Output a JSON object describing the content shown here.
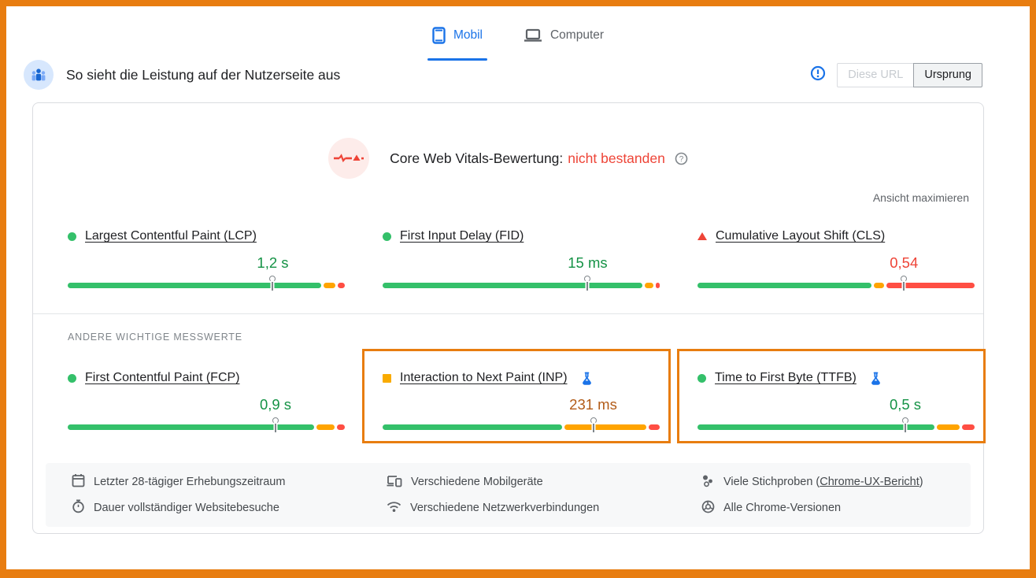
{
  "tabs": {
    "mobile": "Mobil",
    "desktop": "Computer"
  },
  "header": {
    "title": "So sieht die Leistung auf der Nutzerseite aus",
    "url_toggle": {
      "this_url": "Diese URL",
      "origin": "Ursprung"
    }
  },
  "cwv": {
    "heading": "Core Web Vitals-Bewertung:",
    "verdict": "nicht bestanden",
    "expand_label": "Ansicht maximieren"
  },
  "other_metrics_label": "ANDERE WICHTIGE MESSWERTE",
  "metrics": [
    {
      "id": "lcp",
      "label": "Largest Contentful Paint (LCP)",
      "value": "1,2 s",
      "status": "good",
      "bar": {
        "green": 93,
        "orange": 4.5,
        "red": 2.5
      },
      "marker_pct": 74,
      "experimental": false,
      "highlighted": false
    },
    {
      "id": "fid",
      "label": "First Input Delay (FID)",
      "value": "15 ms",
      "status": "good",
      "bar": {
        "green": 95.5,
        "orange": 3,
        "red": 1.5
      },
      "marker_pct": 74,
      "experimental": false,
      "highlighted": false
    },
    {
      "id": "cls",
      "label": "Cumulative Layout Shift (CLS)",
      "value": "0,54",
      "status": "poor",
      "bar": {
        "green": 64,
        "orange": 3.5,
        "red": 32.5
      },
      "marker_pct": 74.5,
      "experimental": false,
      "highlighted": false
    },
    {
      "id": "fcp",
      "label": "First Contentful Paint (FCP)",
      "value": "0,9 s",
      "status": "good",
      "bar": {
        "green": 90.5,
        "orange": 6.5,
        "red": 3
      },
      "marker_pct": 75,
      "experimental": false,
      "highlighted": false
    },
    {
      "id": "inp",
      "label": "Interaction to Next Paint (INP)",
      "value": "231 ms",
      "status": "ni",
      "bar": {
        "green": 66,
        "orange": 30,
        "red": 4
      },
      "marker_pct": 76,
      "experimental": true,
      "highlighted": true
    },
    {
      "id": "ttfb",
      "label": "Time to First Byte (TTFB)",
      "value": "0,5 s",
      "status": "good",
      "bar": {
        "green": 87,
        "orange": 8.5,
        "red": 4.5
      },
      "marker_pct": 75,
      "experimental": true,
      "highlighted": true
    }
  ],
  "footer": {
    "items": [
      {
        "icon": "calendar-icon",
        "text": "Letzter 28-tägiger Erhebungszeitraum"
      },
      {
        "icon": "devices-icon",
        "text": "Verschiedene Mobilgeräte"
      },
      {
        "icon": "samples-icon",
        "text_prefix": "Viele Stichproben (",
        "link": "Chrome-UX-Bericht",
        "text_suffix": ")"
      },
      {
        "icon": "stopwatch-icon",
        "text": "Dauer vollständiger Websitebesuche"
      },
      {
        "icon": "wifi-icon",
        "text": "Verschiedene Netzwerkverbindungen"
      },
      {
        "icon": "chrome-icon",
        "text": "Alle Chrome-Versionen"
      }
    ]
  },
  "colors": {
    "frame_orange": "#e87d10",
    "bar_green": "#34c06a",
    "bar_orange": "#ffa400",
    "bar_red": "#ff4e43",
    "text_good": "#149245",
    "text_needs_improvement": "#b25b17",
    "text_poor": "#ee4437",
    "accent_blue": "#1a73e8"
  }
}
